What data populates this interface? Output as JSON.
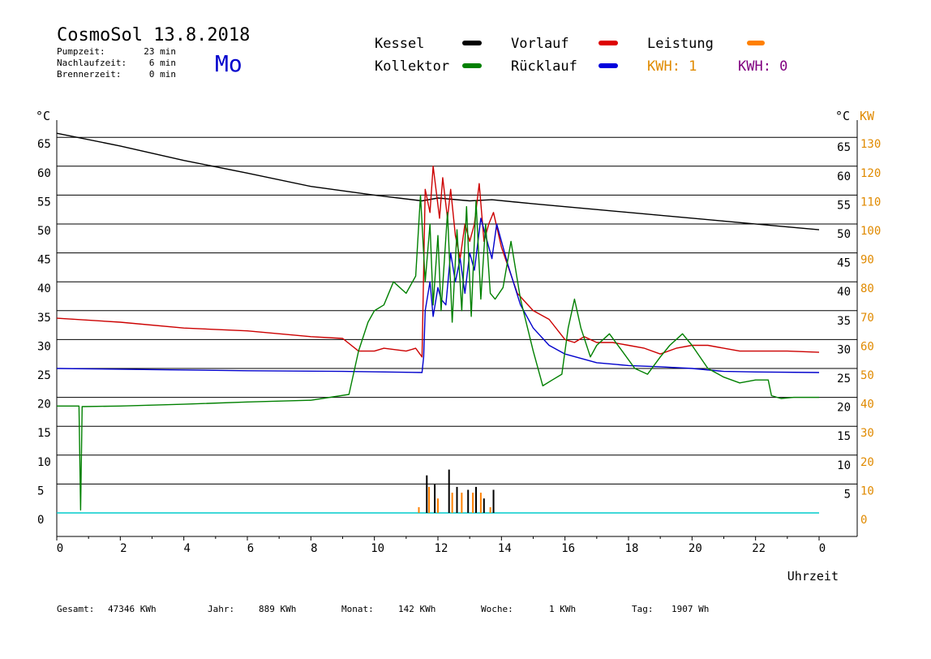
{
  "header": {
    "title": "CosmoSol 13.8.2018",
    "day": "Mo",
    "info": [
      {
        "label": "Pumpzeit:",
        "value": "23 min"
      },
      {
        "label": "Nachlaufzeit:",
        "value": "6 min"
      },
      {
        "label": "Brennerzeit:",
        "value": "0 min"
      }
    ]
  },
  "legend": {
    "kessel": "Kessel",
    "kollektor": "Kollektor",
    "vorlauf": "Vorlauf",
    "ruecklauf": "Rücklauf",
    "leistung": "Leistung",
    "kwh1": "KWH: 1",
    "kwh2": "KWH: 0"
  },
  "footer": {
    "gesamt_label": "Gesamt:",
    "gesamt_value": "47346 KWh",
    "jahr_label": "Jahr:",
    "jahr_value": "889 KWh",
    "monat_label": "Monat:",
    "monat_value": "142 KWh",
    "woche_label": "Woche:",
    "woche_value": "1 KWh",
    "tag_label": "Tag:",
    "tag_value": "1907 Wh"
  },
  "colors": {
    "kessel": "#000000",
    "kollektor": "#008000",
    "vorlauf": "#cc0000",
    "ruecklauf": "#0000cc",
    "leistung": "#ff8000",
    "kwh": "#e08a00",
    "kwh2": "#800080",
    "baseline": "#00cccc",
    "day": "#0000cc"
  },
  "chart_data": {
    "type": "line",
    "xlabel": "Uhrzeit",
    "ylabel_left": "°C",
    "ylabel_right": "°C",
    "ylabel_right2": "KW",
    "xlim": [
      0,
      24
    ],
    "ylim": [
      -4,
      70
    ],
    "x_ticks": [
      "0",
      "2",
      "4",
      "6",
      "8",
      "10",
      "12",
      "14",
      "16",
      "18",
      "20",
      "22",
      "0"
    ],
    "y_ticks": [
      0,
      5,
      10,
      15,
      20,
      25,
      30,
      35,
      40,
      45,
      50,
      55,
      60,
      65
    ],
    "y_ticks_right": [
      5,
      10,
      15,
      20,
      25,
      30,
      35,
      40,
      45,
      50,
      55,
      60,
      65
    ],
    "kw_ticks": [
      0,
      10,
      20,
      30,
      40,
      50,
      60,
      70,
      80,
      90,
      100,
      110,
      120,
      130
    ],
    "grid": true,
    "series": [
      {
        "name": "Kessel",
        "key": "kessel",
        "points": [
          [
            0,
            65.7
          ],
          [
            2,
            63.5
          ],
          [
            4,
            61
          ],
          [
            6,
            58.8
          ],
          [
            8,
            56.5
          ],
          [
            10,
            55
          ],
          [
            11.5,
            54
          ],
          [
            12,
            54.5
          ],
          [
            13,
            54
          ],
          [
            13.7,
            54.2
          ],
          [
            15,
            53.5
          ],
          [
            17,
            52.5
          ],
          [
            19,
            51.5
          ],
          [
            21,
            50.5
          ],
          [
            23,
            49.5
          ],
          [
            24,
            49
          ]
        ]
      },
      {
        "name": "Vorlauf",
        "key": "vorlauf",
        "points": [
          [
            0,
            33.7
          ],
          [
            2,
            33
          ],
          [
            4,
            32
          ],
          [
            6,
            31.5
          ],
          [
            8,
            30.5
          ],
          [
            9,
            30.2
          ],
          [
            9.5,
            28
          ],
          [
            10,
            28
          ],
          [
            10.3,
            28.5
          ],
          [
            11,
            28
          ],
          [
            11.3,
            28.5
          ],
          [
            11.5,
            27
          ],
          [
            11.6,
            56
          ],
          [
            11.75,
            52
          ],
          [
            11.85,
            60
          ],
          [
            12.05,
            51
          ],
          [
            12.15,
            58
          ],
          [
            12.3,
            51
          ],
          [
            12.4,
            56
          ],
          [
            12.55,
            48
          ],
          [
            12.7,
            44
          ],
          [
            12.85,
            50
          ],
          [
            13,
            47
          ],
          [
            13.15,
            50
          ],
          [
            13.3,
            57
          ],
          [
            13.45,
            47
          ],
          [
            13.6,
            50
          ],
          [
            13.75,
            52
          ],
          [
            14,
            46
          ],
          [
            14.5,
            38
          ],
          [
            15,
            35
          ],
          [
            15.5,
            33.5
          ],
          [
            16,
            30
          ],
          [
            16.3,
            29.5
          ],
          [
            16.6,
            30.5
          ],
          [
            17,
            29.5
          ],
          [
            17.5,
            29.5
          ],
          [
            18,
            29
          ],
          [
            18.5,
            28.5
          ],
          [
            19,
            27.5
          ],
          [
            19.5,
            28.5
          ],
          [
            20,
            29
          ],
          [
            20.5,
            29
          ],
          [
            21,
            28.5
          ],
          [
            21.5,
            28
          ],
          [
            22,
            28
          ],
          [
            23,
            28
          ],
          [
            24,
            27.8
          ]
        ]
      },
      {
        "name": "Rücklauf",
        "key": "ruecklauf",
        "points": [
          [
            0,
            25
          ],
          [
            3,
            24.8
          ],
          [
            6,
            24.6
          ],
          [
            9,
            24.5
          ],
          [
            11.5,
            24.3
          ],
          [
            11.55,
            27
          ],
          [
            11.6,
            35
          ],
          [
            11.75,
            40
          ],
          [
            11.85,
            34
          ],
          [
            12,
            39
          ],
          [
            12.1,
            37
          ],
          [
            12.25,
            36
          ],
          [
            12.4,
            45
          ],
          [
            12.55,
            40
          ],
          [
            12.7,
            44
          ],
          [
            12.85,
            38
          ],
          [
            13,
            45
          ],
          [
            13.15,
            42
          ],
          [
            13.35,
            51
          ],
          [
            13.5,
            48
          ],
          [
            13.7,
            44
          ],
          [
            13.85,
            50
          ],
          [
            14.2,
            43
          ],
          [
            14.6,
            36
          ],
          [
            15,
            32
          ],
          [
            15.5,
            29
          ],
          [
            16,
            27.5
          ],
          [
            17,
            26
          ],
          [
            18,
            25.5
          ],
          [
            19,
            25.3
          ],
          [
            20,
            25
          ],
          [
            21,
            24.5
          ],
          [
            22,
            24.4
          ],
          [
            24,
            24.3
          ]
        ]
      },
      {
        "name": "Kollektor",
        "key": "kollektor",
        "points": [
          [
            0,
            18.5
          ],
          [
            0.7,
            18.5
          ],
          [
            0.75,
            0.5
          ],
          [
            0.8,
            18.4
          ],
          [
            2,
            18.5
          ],
          [
            4,
            18.8
          ],
          [
            6,
            19.2
          ],
          [
            8,
            19.5
          ],
          [
            9.2,
            20.5
          ],
          [
            9.5,
            28
          ],
          [
            9.8,
            33
          ],
          [
            10,
            35
          ],
          [
            10.3,
            36
          ],
          [
            10.6,
            40
          ],
          [
            11,
            38
          ],
          [
            11.3,
            41
          ],
          [
            11.45,
            55
          ],
          [
            11.6,
            40
          ],
          [
            11.75,
            50
          ],
          [
            11.85,
            36
          ],
          [
            12,
            48
          ],
          [
            12.1,
            35
          ],
          [
            12.3,
            52
          ],
          [
            12.45,
            33
          ],
          [
            12.6,
            49
          ],
          [
            12.75,
            35
          ],
          [
            12.9,
            53
          ],
          [
            13.05,
            34
          ],
          [
            13.2,
            54
          ],
          [
            13.35,
            37
          ],
          [
            13.5,
            50
          ],
          [
            13.65,
            38
          ],
          [
            13.8,
            37
          ],
          [
            14.05,
            39
          ],
          [
            14.3,
            47
          ],
          [
            14.6,
            37
          ],
          [
            15,
            28
          ],
          [
            15.3,
            22
          ],
          [
            15.6,
            23
          ],
          [
            15.9,
            24
          ],
          [
            16.1,
            32
          ],
          [
            16.3,
            37
          ],
          [
            16.5,
            32
          ],
          [
            16.8,
            27
          ],
          [
            17,
            29
          ],
          [
            17.4,
            31
          ],
          [
            17.8,
            28
          ],
          [
            18.2,
            25
          ],
          [
            18.6,
            24
          ],
          [
            19,
            27
          ],
          [
            19.3,
            29
          ],
          [
            19.7,
            31
          ],
          [
            20,
            29
          ],
          [
            20.5,
            25
          ],
          [
            21,
            23.5
          ],
          [
            21.5,
            22.5
          ],
          [
            22,
            23
          ],
          [
            22.4,
            23
          ],
          [
            22.5,
            20.3
          ],
          [
            22.8,
            19.8
          ],
          [
            23.2,
            20
          ],
          [
            24,
            20
          ]
        ]
      }
    ],
    "power_bars": [
      {
        "x": 11.4,
        "kw": 2
      },
      {
        "x": 11.65,
        "kw": 13
      },
      {
        "x": 11.72,
        "kw": 9
      },
      {
        "x": 11.9,
        "kw": 10
      },
      {
        "x": 12.0,
        "kw": 5
      },
      {
        "x": 12.35,
        "kw": 15
      },
      {
        "x": 12.45,
        "kw": 7
      },
      {
        "x": 12.6,
        "kw": 9
      },
      {
        "x": 12.75,
        "kw": 7
      },
      {
        "x": 12.95,
        "kw": 8
      },
      {
        "x": 13.1,
        "kw": 7
      },
      {
        "x": 13.2,
        "kw": 9
      },
      {
        "x": 13.35,
        "kw": 7
      },
      {
        "x": 13.45,
        "kw": 5
      },
      {
        "x": 13.65,
        "kw": 2
      },
      {
        "x": 13.75,
        "kw": 8
      }
    ],
    "baseline_value": 0
  }
}
